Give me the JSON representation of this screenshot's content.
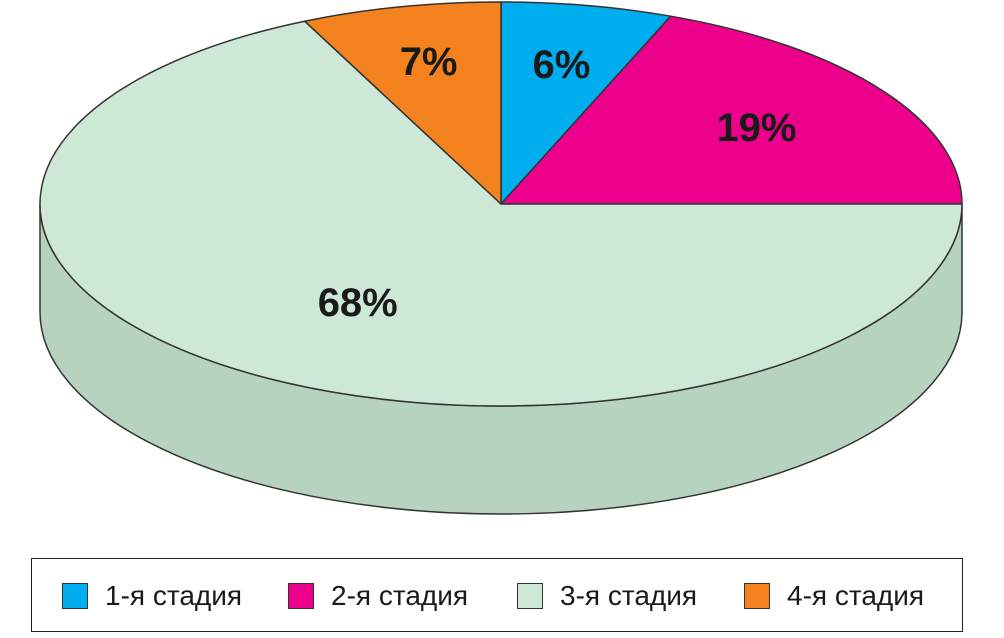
{
  "chart_data": {
    "type": "pie",
    "three_d": true,
    "title": "",
    "categories": [
      "1-я стадия",
      "2-я стадия",
      "3-я стадия",
      "4-я стадия"
    ],
    "values": [
      6,
      19,
      68,
      7
    ],
    "labels": [
      "6%",
      "19%",
      "68%",
      "7%"
    ],
    "colors": [
      "#00aeef",
      "#ec008c",
      "#cde8d7",
      "#f4821f"
    ],
    "side_colors": [
      "#0096cc",
      "#c4007a",
      "#b5d3bf",
      "#d66d12"
    ],
    "edge_color": "#333333",
    "start_angle_deg": -90,
    "direction": "clockwise",
    "legend": {
      "placement": "bottom",
      "entries": [
        "1-я стадия",
        "2-я стадия",
        "3-я стадия",
        "4-я стадия"
      ]
    }
  }
}
